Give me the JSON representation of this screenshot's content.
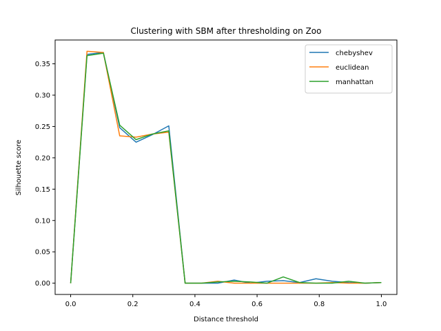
{
  "chart_data": {
    "type": "line",
    "title": "Clustering with SBM after thresholding on Zoo",
    "xlabel": "Distance threshold",
    "ylabel": "Silhouette score",
    "xlim": [
      -0.05,
      1.05
    ],
    "ylim": [
      -0.018,
      0.388
    ],
    "xticks": [
      0.0,
      0.2,
      0.4,
      0.6,
      0.8,
      1.0
    ],
    "xtick_labels": [
      "0.0",
      "0.2",
      "0.4",
      "0.6",
      "0.8",
      "1.0"
    ],
    "yticks": [
      0.0,
      0.05,
      0.1,
      0.15,
      0.2,
      0.25,
      0.3,
      0.35
    ],
    "ytick_labels": [
      "0.00",
      "0.05",
      "0.10",
      "0.15",
      "0.20",
      "0.25",
      "0.30",
      "0.35"
    ],
    "legend_position": "top-right",
    "grid": false,
    "x": [
      0.0,
      0.0526,
      0.1053,
      0.1579,
      0.2105,
      0.2632,
      0.3158,
      0.3684,
      0.4211,
      0.4737,
      0.5263,
      0.5789,
      0.6316,
      0.6842,
      0.7368,
      0.7895,
      0.8421,
      0.8947,
      0.9474,
      1.0
    ],
    "series": [
      {
        "name": "chebyshev",
        "color": "#1f77b4",
        "values": [
          0.0,
          0.365,
          0.368,
          0.248,
          0.225,
          0.237,
          0.251,
          0.0,
          0.0,
          0.0,
          0.005,
          0.0,
          0.003,
          0.004,
          0.001,
          0.007,
          0.003,
          0.001,
          0.0,
          0.001
        ]
      },
      {
        "name": "euclidean",
        "color": "#ff7f0e",
        "values": [
          0.0,
          0.37,
          0.368,
          0.235,
          0.233,
          0.238,
          0.241,
          0.0,
          0.0,
          0.003,
          0.0,
          0.0,
          0.0,
          0.0,
          0.0,
          0.0,
          0.001,
          0.0,
          0.0,
          0.001
        ]
      },
      {
        "name": "manhattan",
        "color": "#2ca02c",
        "values": [
          0.0,
          0.363,
          0.367,
          0.252,
          0.229,
          0.238,
          0.243,
          0.0,
          0.0,
          0.002,
          0.003,
          0.002,
          0.0,
          0.01,
          0.001,
          0.0,
          0.0,
          0.003,
          0.0,
          0.001
        ]
      }
    ]
  }
}
